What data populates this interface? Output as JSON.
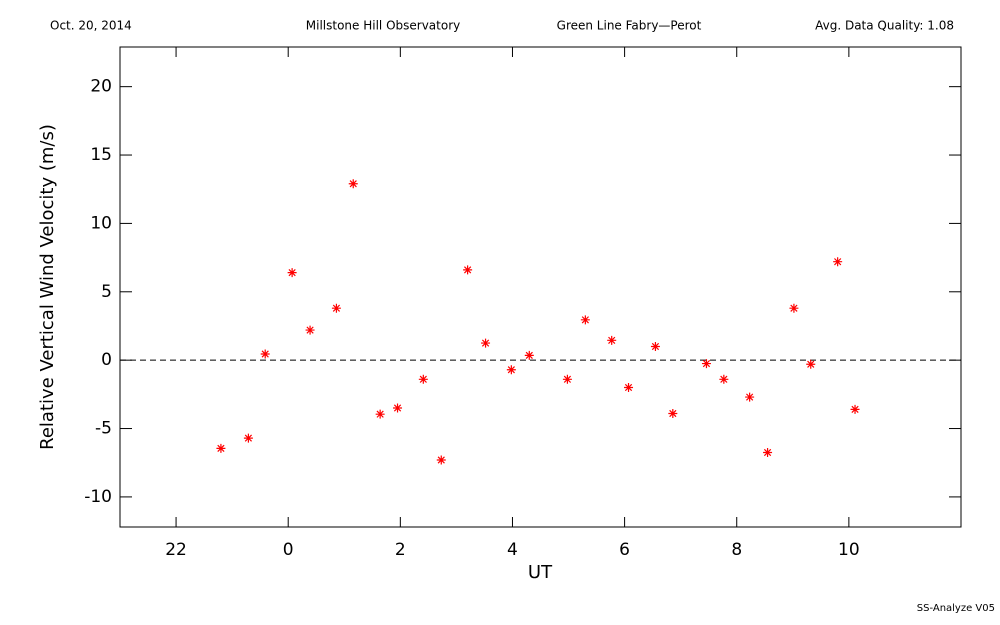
{
  "chart_data": {
    "type": "scatter",
    "header": {
      "date": "Oct. 20, 2014",
      "observatory": "Millstone Hill Observatory",
      "instrument": "Green Line Fabry—Perot",
      "quality": "Avg. Data Quality: 1.08"
    },
    "footer": "SS-Analyze V05",
    "x_label": "UT",
    "y_label": "Relative Vertical Wind Velocity (m/s)",
    "color": "#ff0000",
    "reference_line": 0,
    "x": [
      -1.2,
      -0.71,
      -0.41,
      0.07,
      0.39,
      0.86,
      1.16,
      1.64,
      1.95,
      2.41,
      2.73,
      3.2,
      3.52,
      3.98,
      4.3,
      4.98,
      5.3,
      5.77,
      6.07,
      6.55,
      6.86,
      7.46,
      7.77,
      8.23,
      8.55,
      9.02,
      9.32,
      9.8,
      10.11
    ],
    "values": [
      -6.45,
      -5.7,
      0.45,
      6.4,
      2.2,
      3.8,
      12.9,
      -3.95,
      -3.5,
      -1.4,
      -7.3,
      6.6,
      1.25,
      -0.7,
      0.35,
      -1.4,
      2.95,
      1.45,
      -2.0,
      1.0,
      -3.9,
      -0.25,
      -1.4,
      -2.7,
      -6.75,
      3.8,
      -0.3,
      7.2,
      -3.6
    ],
    "xlim": [
      -3,
      12
    ],
    "xticks": [
      {
        "value": -2,
        "label": "22"
      },
      0,
      2,
      4,
      6,
      8,
      10
    ],
    "ylim": [
      -12.2,
      22.9
    ],
    "yticks": [
      -10,
      -5,
      0,
      5,
      10,
      15,
      20
    ]
  }
}
